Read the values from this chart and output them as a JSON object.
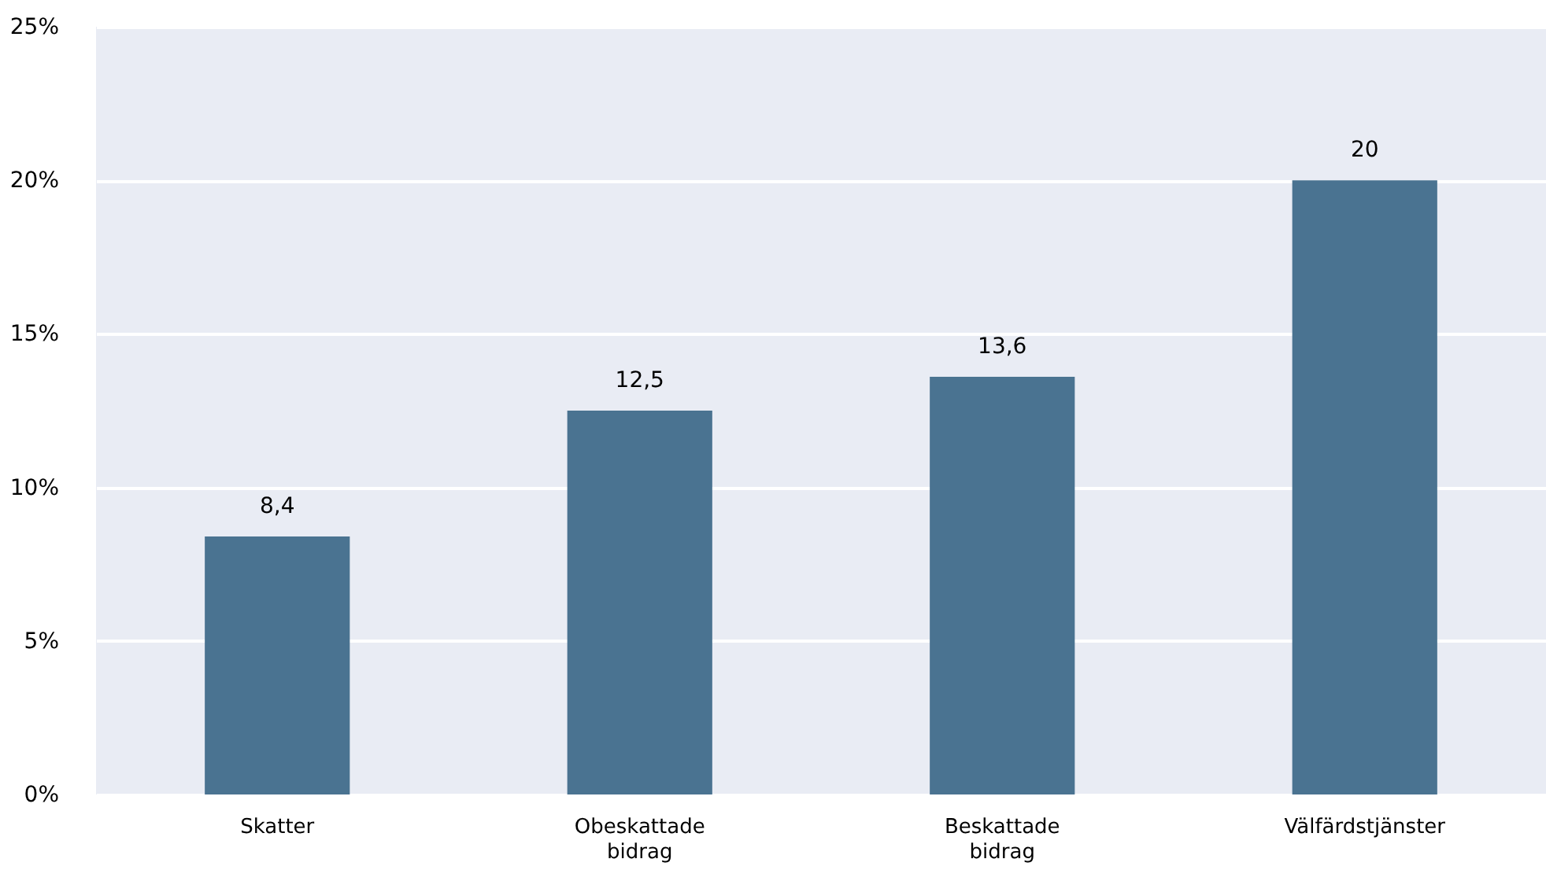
{
  "chart_data": {
    "type": "bar",
    "categories": [
      "Skatter",
      "Obeskattade bidrag",
      "Beskattade bidrag",
      "Välfärdstjänster"
    ],
    "values": [
      8.4,
      12.5,
      13.6,
      20
    ],
    "value_labels": [
      "8,4",
      "12,5",
      "13,6",
      "20"
    ],
    "color": "#4a7391",
    "ylim": [
      0,
      25
    ],
    "yticks": [
      {
        "value": 0,
        "label": "0%"
      },
      {
        "value": 5,
        "label": "5%"
      },
      {
        "value": 10,
        "label": "10%"
      },
      {
        "value": 15,
        "label": "15%"
      },
      {
        "value": 20,
        "label": "20%"
      },
      {
        "value": 25,
        "label": "25%"
      }
    ],
    "grid": "y"
  }
}
